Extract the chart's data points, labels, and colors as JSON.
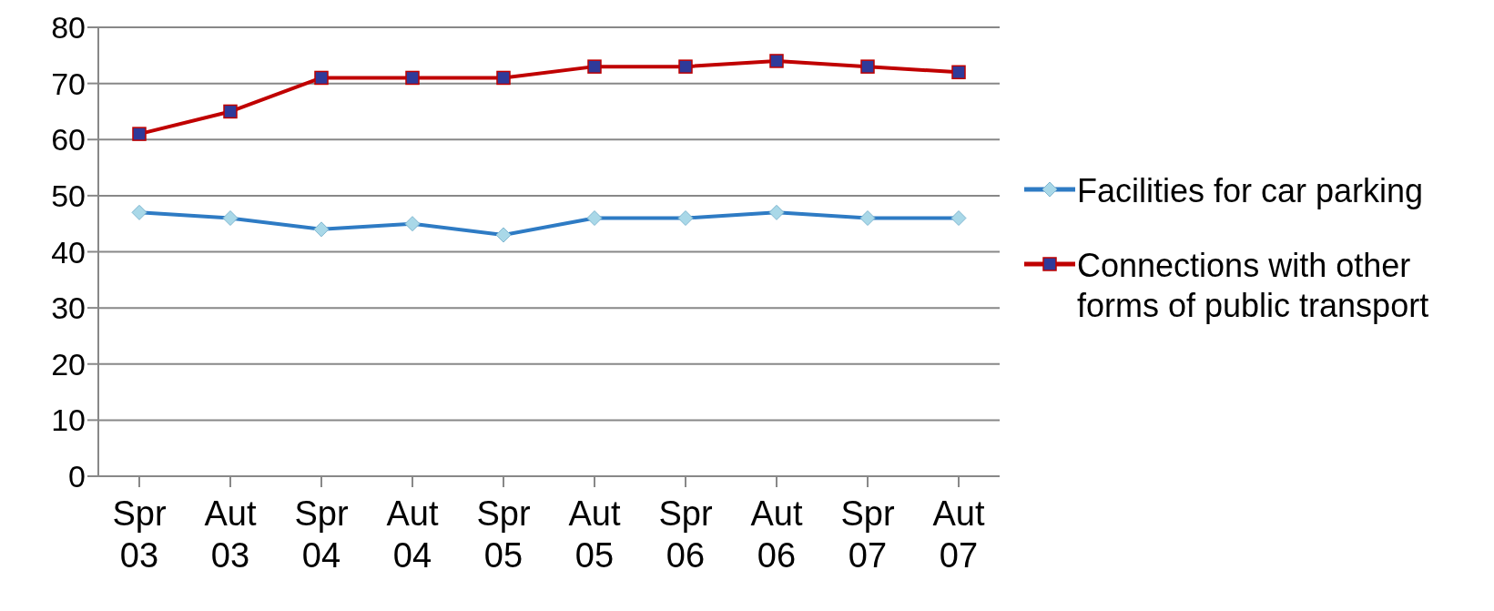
{
  "chart_data": {
    "type": "line",
    "categories": [
      "Spr 03",
      "Aut 03",
      "Spr 04",
      "Aut 04",
      "Spr 05",
      "Aut 05",
      "Spr 06",
      "Aut 06",
      "Spr 07",
      "Aut 07"
    ],
    "series": [
      {
        "name": "Facilities for car parking",
        "color": "#2e7bc4",
        "marker": "diamond",
        "values": [
          47,
          46,
          44,
          45,
          43,
          46,
          46,
          47,
          46,
          46
        ]
      },
      {
        "name": "Connections with other forms of public transport",
        "color": "#c00000",
        "marker": "square",
        "values": [
          61,
          65,
          71,
          71,
          71,
          73,
          73,
          74,
          73,
          72
        ]
      }
    ],
    "ylim": [
      0,
      80
    ],
    "yticks": [
      0,
      10,
      20,
      30,
      40,
      50,
      60,
      70,
      80
    ],
    "grid": "y",
    "legend": "right"
  }
}
